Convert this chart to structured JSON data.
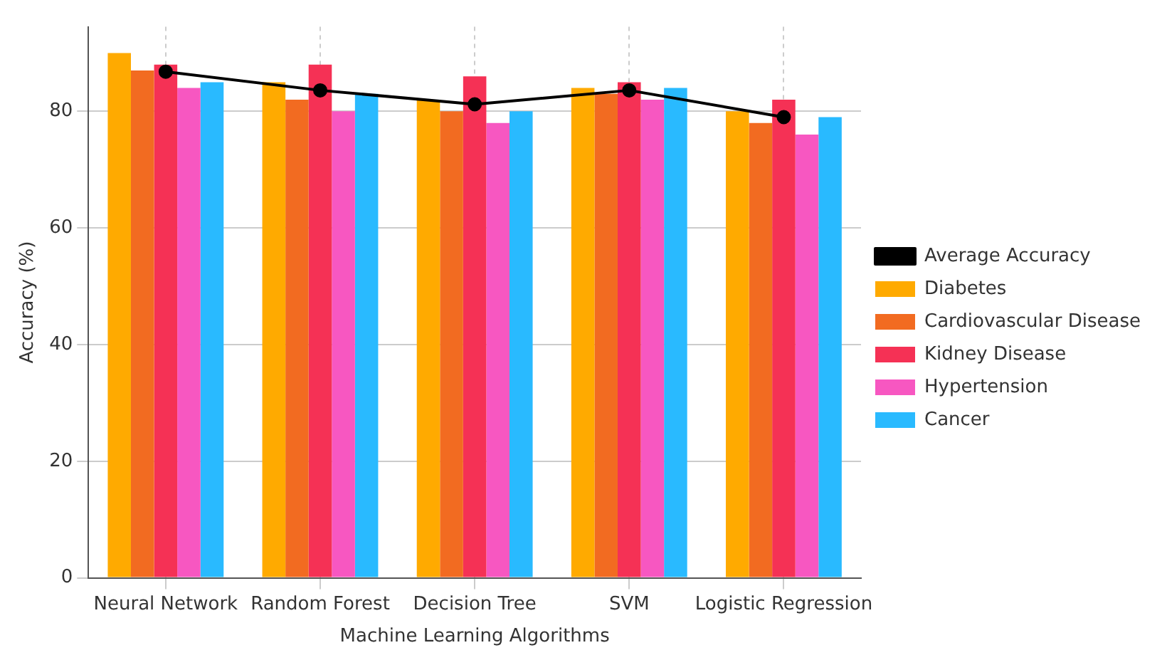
{
  "chart_data": {
    "type": "bar",
    "xlabel": "Machine Learning Algorithms",
    "ylabel": "Accuracy (%)",
    "categories": [
      "Neural Network",
      "Random Forest",
      "Decision Tree",
      "SVM",
      "Logistic Regression"
    ],
    "series": [
      {
        "name": "Average Accuracy",
        "type": "line",
        "color": "#000000",
        "marker": "circle",
        "line_style": "solid",
        "values": [
          86.8,
          83.6,
          81.2,
          83.6,
          79
        ]
      },
      {
        "name": "Diabetes",
        "color": "#ffaa00",
        "values": [
          90,
          85,
          82,
          84,
          80
        ]
      },
      {
        "name": "Cardiovascular Disease",
        "color": "#f26b21",
        "values": [
          87,
          82,
          80,
          83,
          78
        ]
      },
      {
        "name": "Kidney Disease",
        "color": "#f53155",
        "values": [
          88,
          88,
          86,
          85,
          82
        ]
      },
      {
        "name": "Hypertension",
        "color": "#f757c1",
        "values": [
          84,
          80,
          78,
          82,
          76
        ]
      },
      {
        "name": "Cancer",
        "color": "#29baff",
        "values": [
          85,
          83,
          80,
          84,
          79
        ]
      }
    ],
    "ylim": [
      0,
      94.5
    ],
    "yticks": [
      0,
      20,
      40,
      60,
      80
    ],
    "grid": true,
    "legend": "right"
  }
}
